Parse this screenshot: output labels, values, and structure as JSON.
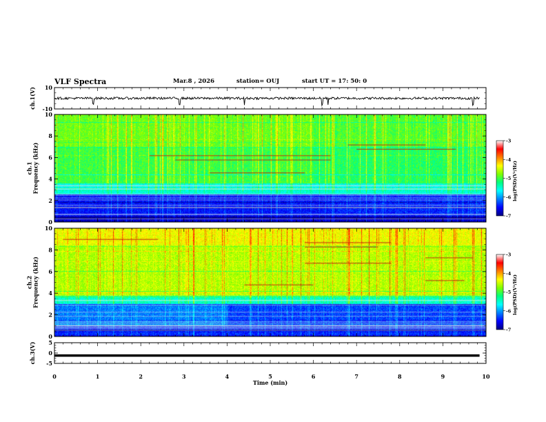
{
  "header": {
    "title": "VLF Spectra",
    "date": "Mar.8  , 2026",
    "station": "station= OUJ",
    "start": "start  UT  =   17: 50: 0"
  },
  "chart_data": [
    {
      "type": "line",
      "name": "ch1-waveform",
      "ylabel": "ch.1(V)",
      "ylim": [
        -10,
        10
      ],
      "yticks": [
        "10",
        "-10"
      ],
      "baseline": 0,
      "spikes_min": [
        0.9,
        2.9,
        4.4,
        6.2,
        6.34,
        9.7
      ]
    },
    {
      "type": "heatmap",
      "name": "ch1-spectrogram",
      "ylabel": "ch.1\nFrequency  (kHz)",
      "ylim": [
        0,
        10
      ],
      "yticks": [
        "0",
        "2",
        "4",
        "6",
        "8",
        "10"
      ],
      "xlim": [
        0,
        10
      ],
      "colorbar": {
        "label": "log(PSD)(V²/Hz)",
        "ticks": [
          "-3",
          "-4",
          "-5",
          "-6",
          "-7"
        ],
        "range": [
          -7,
          -3
        ]
      },
      "horizontal_lines_khz": [
        {
          "f": 6.2,
          "x0": 2.2,
          "x1": 6.4
        },
        {
          "f": 5.8,
          "x0": 2.8,
          "x1": 6.4
        },
        {
          "f": 4.6,
          "x0": 3.6,
          "x1": 5.8
        },
        {
          "f": 7.2,
          "x0": 6.8,
          "x1": 8.6
        },
        {
          "f": 6.8,
          "x0": 7.0,
          "x1": 9.3
        }
      ]
    },
    {
      "type": "heatmap",
      "name": "ch2-spectrogram",
      "ylabel": "ch.2\nFrequency  (kHz)",
      "ylim": [
        0,
        10
      ],
      "yticks": [
        "0",
        "2",
        "4",
        "6",
        "8",
        "10"
      ],
      "xlim": [
        0,
        10
      ],
      "colorbar": {
        "label": "log(PSD)(V²/Hz)",
        "ticks": [
          "-3",
          "-4",
          "-5",
          "-6",
          "-7"
        ],
        "range": [
          -7,
          -3
        ]
      },
      "horizontal_lines_khz": [
        {
          "f": 9.0,
          "x0": 0.2,
          "x1": 2.4
        },
        {
          "f": 8.7,
          "x0": 5.8,
          "x1": 7.8
        },
        {
          "f": 8.3,
          "x0": 5.8,
          "x1": 7.5
        },
        {
          "f": 7.3,
          "x0": 8.6,
          "x1": 9.7
        },
        {
          "f": 6.8,
          "x0": 5.8,
          "x1": 7.8
        },
        {
          "f": 5.2,
          "x0": 8.6,
          "x1": 9.5
        },
        {
          "f": 4.8,
          "x0": 4.4,
          "x1": 6.0
        }
      ]
    },
    {
      "type": "line",
      "name": "ch3-trace",
      "ylabel": "ch.3(V)",
      "ylim": [
        -5,
        5
      ],
      "yticks": [
        "5",
        "0",
        "-5"
      ],
      "value": -1.2
    }
  ],
  "xaxis": {
    "label": "Time  (min)",
    "min": 0,
    "max": 10,
    "ticks": [
      "0",
      "1",
      "2",
      "3",
      "4",
      "5",
      "6",
      "7",
      "8",
      "9",
      "10"
    ]
  },
  "colors": {
    "jet": [
      "#00007f",
      "#0000ff",
      "#007fff",
      "#00ffff",
      "#00ff7f",
      "#7fff00",
      "#ffff00",
      "#ff7f00",
      "#ff0000",
      "#ffffff"
    ]
  }
}
